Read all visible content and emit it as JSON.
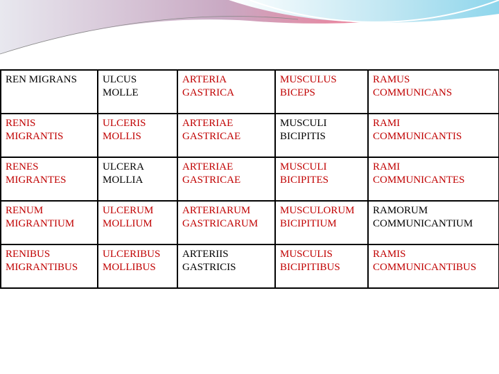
{
  "table": {
    "rows": [
      [
        {
          "lines": [
            "REN MIGRANS"
          ],
          "color": "#000000"
        },
        {
          "lines": [
            "ULCUS",
            "MOLLE"
          ],
          "color": "#000000"
        },
        {
          "lines": [
            "ARTERIA",
            "GASTRICA"
          ],
          "color": "#c00000"
        },
        {
          "lines": [
            "MUSCULUS",
            "BICEPS"
          ],
          "color": "#c00000"
        },
        {
          "lines": [
            "RAMUS",
            "COMMUNICANS"
          ],
          "color": "#c00000"
        }
      ],
      [
        {
          "lines": [
            "RENIS",
            "MIGRANTIS"
          ],
          "color": "#c00000"
        },
        {
          "lines": [
            "ULCERIS",
            "MOLLIS"
          ],
          "color": "#c00000"
        },
        {
          "lines": [
            "ARTERIAE",
            "GASTRICAE"
          ],
          "color": "#c00000"
        },
        {
          "lines": [
            "MUSCULI",
            "BICIPITIS"
          ],
          "color": "#000000"
        },
        {
          "lines": [
            "RAMI",
            "COMMUNICANTIS"
          ],
          "color": "#c00000"
        }
      ],
      [
        {
          "lines": [
            "RENES",
            "MIGRANTES"
          ],
          "color": "#c00000"
        },
        {
          "lines": [
            "ULCERA",
            "MOLLIA"
          ],
          "color": "#000000"
        },
        {
          "lines": [
            "ARTERIAE",
            "GASTRICAE"
          ],
          "color": "#c00000"
        },
        {
          "lines": [
            "MUSCULI",
            "BICIPITES"
          ],
          "color": "#c00000"
        },
        {
          "lines": [
            "RAMI",
            "COMMUNICANTES"
          ],
          "color": "#c00000"
        }
      ],
      [
        {
          "lines": [
            "RENUM",
            "MIGRANTIUM"
          ],
          "color": "#c00000"
        },
        {
          "lines": [
            "ULCERUM",
            "MOLLIUM"
          ],
          "color": "#c00000"
        },
        {
          "lines": [
            "ARTERIARUM",
            "GASTRICARUM"
          ],
          "color": "#c00000"
        },
        {
          "lines": [
            "MUSCULORUM",
            "BICIPITIUM"
          ],
          "color": "#c00000"
        },
        {
          "lines": [
            "RAMORUM",
            "COMMUNICANTIUM"
          ],
          "color": "#000000"
        }
      ],
      [
        {
          "lines": [
            "RENIBUS",
            "MIGRANTIBUS"
          ],
          "color": "#c00000"
        },
        {
          "lines": [
            "ULCERIBUS",
            "MOLLIBUS"
          ],
          "color": "#c00000"
        },
        {
          "lines": [
            "ARTERIIS",
            "GASTRICIS"
          ],
          "color": "#000000"
        },
        {
          "lines": [
            "MUSCULIS",
            "BICIPITIBUS"
          ],
          "color": "#c00000"
        },
        {
          "lines": [
            "RAMIS",
            "COMMUNICANTIBUS"
          ],
          "color": "#c00000"
        }
      ]
    ]
  }
}
